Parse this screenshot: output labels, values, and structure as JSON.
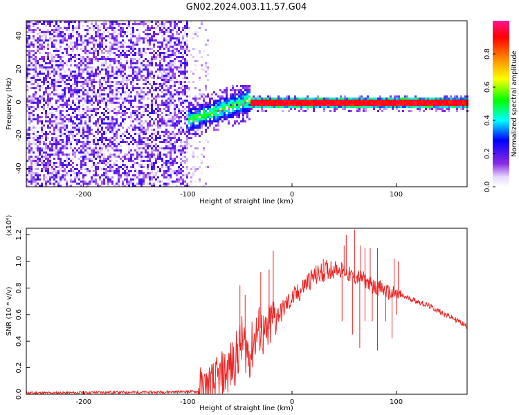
{
  "title": "GN02.2024.003.11.57.G04",
  "colors": {
    "snr_line": "#ee2222",
    "frame": "#000000",
    "background": "#ffffff"
  },
  "chart_data": [
    {
      "type": "heatmap",
      "title": "GN02.2024.003.11.57.G04",
      "xlabel": "Height of straight line (km)",
      "ylabel": "Frequency (Hz)",
      "xlim": [
        -255,
        168
      ],
      "ylim": [
        -51,
        49
      ],
      "x_ticks": [
        -200,
        -100,
        0,
        100
      ],
      "y_ticks": [
        -40,
        -20,
        0,
        20,
        40
      ],
      "grid": false,
      "colorbar": {
        "label": "Normalized spectral amplitude",
        "range": [
          0.0,
          1.0
        ],
        "ticks": [
          "0.0",
          "0.2",
          "0.4",
          "0.6",
          "0.8"
        ],
        "colormap": [
          "#ffffff",
          "#8a2be2",
          "#0000ff",
          "#00ffff",
          "#00ff00",
          "#ffff00",
          "#ff8000",
          "#ff0000",
          "#ff1493"
        ]
      },
      "description_regions": [
        {
          "x": [
            -255,
            -100
          ],
          "freq": [
            -50,
            49
          ],
          "amplitude": "low (0.05-0.25), scattered noise"
        },
        {
          "x": [
            -100,
            -80
          ],
          "freq": [
            -50,
            49
          ],
          "amplitude": "sparse low noise"
        },
        {
          "x": [
            -100,
            -40
          ],
          "freq_center_from": -10,
          "freq_center_to": 2,
          "amplitude": "0.2-0.5 rising"
        },
        {
          "x": [
            -40,
            168
          ],
          "freq": [
            -2,
            2
          ],
          "amplitude": "0.85-1.0 line at 0 Hz"
        }
      ]
    },
    {
      "type": "line",
      "xlabel": "Height of straight line (km)",
      "ylabel": "SNR (10 * v/v)",
      "y_multiplier": "(x10⁴)",
      "xlim": [
        -255,
        168
      ],
      "ylim": [
        0.0,
        1.25
      ],
      "x_ticks": [
        -200,
        -100,
        0,
        100
      ],
      "y_ticks": [
        "0.0",
        "0.2",
        "0.4",
        "0.6",
        "0.8",
        "1.0",
        "1.2"
      ],
      "grid": false,
      "series": [
        {
          "color": "#ee2222",
          "x": [
            -255,
            -220,
            -180,
            -140,
            -100,
            -85,
            -75,
            -65,
            -55,
            -48,
            -40,
            -35,
            -30,
            -25,
            -20,
            -15,
            -10,
            -5,
            0,
            5,
            10,
            15,
            20,
            25,
            30,
            35,
            40,
            45,
            50,
            55,
            60,
            65,
            70,
            75,
            80,
            85,
            90,
            95,
            100,
            105,
            110,
            120,
            130,
            140,
            150,
            160,
            168
          ],
          "y": [
            0.01,
            0.01,
            0.015,
            0.015,
            0.02,
            0.02,
            0.06,
            0.15,
            0.25,
            0.4,
            0.3,
            0.45,
            0.5,
            0.4,
            0.55,
            0.6,
            0.62,
            0.68,
            0.72,
            0.75,
            0.8,
            0.85,
            0.88,
            0.9,
            0.92,
            0.94,
            0.95,
            0.94,
            0.93,
            0.9,
            0.88,
            0.88,
            0.86,
            0.83,
            0.8,
            0.8,
            0.77,
            0.76,
            0.75,
            0.74,
            0.73,
            0.7,
            0.67,
            0.63,
            0.59,
            0.55,
            0.51
          ]
        }
      ],
      "spikes": [
        {
          "x": -50,
          "y": 0.82
        },
        {
          "x": -45,
          "y": 0.75
        },
        {
          "x": -30,
          "y": 0.92
        },
        {
          "x": -22,
          "y": 0.94
        },
        {
          "x": -18,
          "y": 1.08
        },
        {
          "x": 30,
          "y": 1.02
        },
        {
          "x": 50,
          "y": 1.12
        },
        {
          "x": 52,
          "y": 1.2
        },
        {
          "x": 60,
          "y": 1.24
        },
        {
          "x": 66,
          "y": 1.12
        },
        {
          "x": 70,
          "y": 1.1
        },
        {
          "x": 75,
          "y": 1.1
        },
        {
          "x": 82,
          "y": 1.1
        },
        {
          "x": 98,
          "y": 1.02
        },
        {
          "x": 102,
          "y": 1.0
        }
      ],
      "dips": [
        {
          "x": 48,
          "y": 0.55
        },
        {
          "x": 58,
          "y": 0.45
        },
        {
          "x": 65,
          "y": 0.35
        },
        {
          "x": 70,
          "y": 0.55
        },
        {
          "x": 77,
          "y": 0.55
        },
        {
          "x": 82,
          "y": 0.33
        },
        {
          "x": 90,
          "y": 0.55
        },
        {
          "x": 96,
          "y": 0.42
        },
        {
          "x": 100,
          "y": 0.6
        }
      ]
    }
  ]
}
